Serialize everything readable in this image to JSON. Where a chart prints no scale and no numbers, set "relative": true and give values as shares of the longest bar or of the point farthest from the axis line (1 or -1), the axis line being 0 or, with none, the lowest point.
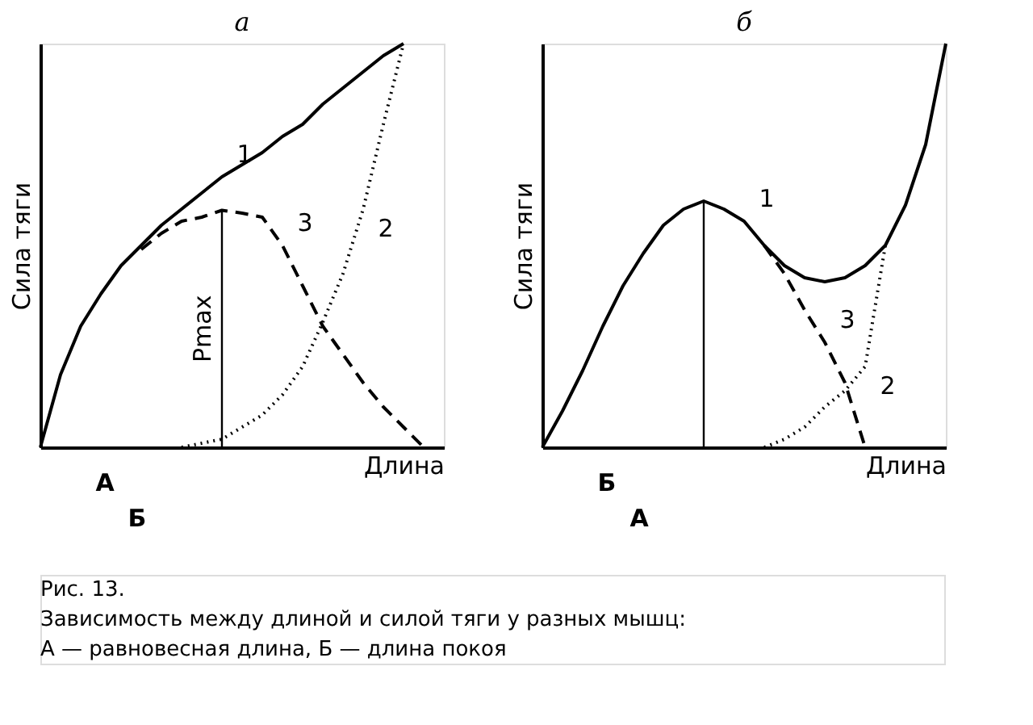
{
  "chart_data": [
    {
      "type": "line",
      "title": "а",
      "xlabel": "Длина",
      "ylabel": "Сила тяги",
      "relative": true,
      "categories": [
        null,
        null,
        null,
        null,
        null,
        null,
        null,
        null,
        null,
        null,
        null,
        null,
        null,
        null,
        null,
        null,
        null,
        null,
        null,
        null,
        null
      ],
      "series": [
        {
          "name": "1",
          "color": "#000000",
          "line_style": "solid",
          "values": [
            0,
            0.18,
            0.3,
            0.38,
            0.45,
            0.5,
            0.55,
            0.59,
            0.63,
            0.67,
            0.7,
            0.73,
            0.77,
            0.8,
            0.85,
            0.89,
            0.93,
            0.97,
            1,
            null,
            null
          ]
        },
        {
          "name": "2",
          "color": "#000000",
          "line_style": "dotted",
          "values": [
            null,
            null,
            null,
            null,
            null,
            null,
            null,
            0,
            0.01,
            0.02,
            0.05,
            0.08,
            0.13,
            0.2,
            0.31,
            0.43,
            0.59,
            0.8,
            1,
            null,
            null
          ]
        },
        {
          "name": "3",
          "color": "#000000",
          "line_style": "dashed",
          "values": [
            null,
            null,
            null,
            null,
            null,
            0.49,
            0.53,
            0.56,
            0.57,
            0.587,
            0.58,
            0.57,
            0.5,
            0.4,
            0.3,
            0.23,
            0.16,
            0.1,
            0.05,
            0,
            null
          ]
        }
      ],
      "annotations": [
        "Pmax",
        {
          "text": "А"
        },
        {
          "text": "Б"
        }
      ]
    },
    {
      "type": "line",
      "title": "б",
      "xlabel": "Длина",
      "ylabel": "Сила тяги",
      "relative": true,
      "categories": [
        null,
        null,
        null,
        null,
        null,
        null,
        null,
        null,
        null,
        null,
        null,
        null,
        null,
        null,
        null,
        null,
        null,
        null,
        null,
        null,
        null
      ],
      "series": [
        {
          "name": "1",
          "color": "#000000",
          "line_style": "solid",
          "values": [
            0,
            0.09,
            0.19,
            0.3,
            0.4,
            0.48,
            0.55,
            0.59,
            0.61,
            0.59,
            0.56,
            0.5,
            0.45,
            0.42,
            0.41,
            0.42,
            0.45,
            0.5,
            0.6,
            0.75,
            1
          ]
        },
        {
          "name": "2",
          "color": "#000000",
          "line_style": "dotted",
          "values": [
            null,
            null,
            null,
            null,
            null,
            null,
            null,
            null,
            null,
            null,
            null,
            0,
            0.02,
            0.05,
            0.1,
            0.14,
            0.2,
            0.5,
            null,
            null,
            null
          ]
        },
        {
          "name": "3",
          "color": "#000000",
          "line_style": "dashed",
          "values": [
            null,
            null,
            null,
            null,
            null,
            null,
            null,
            null,
            null,
            null,
            null,
            0.5,
            0.43,
            0.34,
            0.26,
            0.16,
            0,
            null,
            null,
            null,
            null
          ]
        }
      ],
      "annotations": [
        {
          "text": "Б"
        },
        {
          "text": "А"
        },
        "Рис. 13.",
        "Зависимость между длиной и силой тяги у разных мышц:",
        "А — равновесная длина, Б — длина покоя"
      ]
    }
  ]
}
